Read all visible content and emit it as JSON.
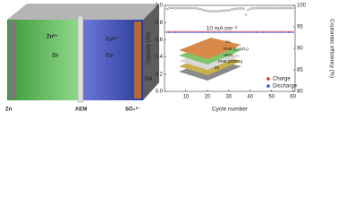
{
  "schematic": {
    "labels": [
      "Zn²⁺",
      "Zn",
      "Cu²⁺",
      "Cu",
      "Cu",
      "Zn",
      "AEM",
      "SO₄²⁻"
    ]
  },
  "inset": {
    "labels": [
      "Cu",
      "PAM (CuSO₄)",
      "AEM",
      "PAM (ZnSO₄)",
      "Zn"
    ]
  },
  "chart_data": {
    "type": "scatter",
    "annotation": "10 mA cm⁻²",
    "xlabel": "Cycle number",
    "ylabel": "Capacity (Ah)",
    "y2label": "Coulombic efficiency (%)",
    "x": [
      1,
      2,
      3,
      4,
      5,
      6,
      7,
      8,
      9,
      10,
      11,
      12,
      13,
      14,
      15,
      16,
      17,
      18,
      19,
      20,
      21,
      22,
      23,
      24,
      25,
      26,
      27,
      28,
      29,
      30,
      31,
      32,
      33,
      34,
      35,
      36,
      37,
      38,
      39,
      40,
      41,
      42,
      43,
      44,
      45,
      46,
      47,
      48,
      49,
      50,
      51,
      52,
      53,
      54,
      55,
      56,
      57,
      58,
      59,
      60
    ],
    "series": [
      {
        "name": "Charge",
        "color": "#d62b2b",
        "values": [
          0.69,
          0.69,
          0.69,
          0.69,
          0.69,
          0.69,
          0.69,
          0.69,
          0.69,
          0.69,
          0.69,
          0.69,
          0.69,
          0.69,
          0.69,
          0.69,
          0.69,
          0.69,
          0.69,
          0.69,
          0.69,
          0.69,
          0.69,
          0.69,
          0.69,
          0.69,
          0.69,
          0.69,
          0.69,
          0.69,
          0.69,
          0.69,
          0.69,
          0.69,
          0.69,
          0.69,
          0.69,
          0.69,
          0.69,
          0.69,
          0.69,
          0.69,
          0.69,
          0.69,
          0.69,
          0.69,
          0.69,
          0.69,
          0.69,
          0.69,
          0.69,
          0.69,
          0.69,
          0.69,
          0.69,
          0.69,
          0.69,
          0.69,
          0.69,
          0.69
        ]
      },
      {
        "name": "Discharge",
        "color": "#2a55d4",
        "values": [
          0.69,
          0.69,
          0.69,
          0.69,
          0.69,
          0.69,
          0.69,
          0.69,
          0.69,
          0.69,
          0.69,
          0.69,
          0.69,
          0.69,
          0.69,
          0.69,
          0.69,
          0.69,
          0.69,
          0.69,
          0.69,
          0.69,
          0.69,
          0.69,
          0.69,
          0.69,
          0.69,
          0.69,
          0.69,
          0.69,
          0.69,
          0.69,
          0.69,
          0.69,
          0.69,
          0.69,
          0.69,
          0.69,
          0.69,
          0.69,
          0.69,
          0.69,
          0.69,
          0.69,
          0.69,
          0.69,
          0.69,
          0.69,
          0.69,
          0.69,
          0.69,
          0.69,
          0.69,
          0.69,
          0.69,
          0.69,
          0.69,
          0.69,
          0.69,
          0.69
        ]
      },
      {
        "color": "#777777",
        "axis": "y2",
        "values": [
          99.1,
          99.3,
          99.4,
          99.4,
          99.3,
          99.4,
          99.4,
          99.3,
          99.4,
          99.4,
          99.3,
          99.4,
          99.3,
          99.4,
          99.3,
          99.2,
          99.1,
          98.9,
          98.8,
          98.7,
          98.6,
          98.7,
          98.6,
          98.7,
          98.6,
          98.7,
          98.8,
          98.7,
          98.9,
          98.8,
          99.0,
          99.1,
          99.2,
          99.2,
          99.3,
          99.3,
          99.2,
          97.8,
          98.9,
          99.2,
          99.3,
          99.3,
          99.4,
          99.4,
          99.3,
          99.4,
          99.4,
          99.3,
          99.4,
          99.4,
          99.3,
          99.4,
          99.3,
          99.4,
          99.4,
          99.3,
          99.4,
          99.4,
          99.3,
          99.4
        ]
      }
    ],
    "xlim": [
      0,
      61
    ],
    "xticks": [
      10,
      20,
      30,
      40,
      50,
      60
    ],
    "ylim": [
      0,
      1
    ],
    "yticks": [
      {
        "value": 0,
        "label": "0.0"
      },
      0.2,
      0.4,
      0.6,
      0.8,
      {
        "value": 1,
        "label": "1.0"
      }
    ],
    "y2lim": [
      80,
      100
    ],
    "y2ticks": [
      80,
      85,
      90,
      95,
      100
    ]
  }
}
